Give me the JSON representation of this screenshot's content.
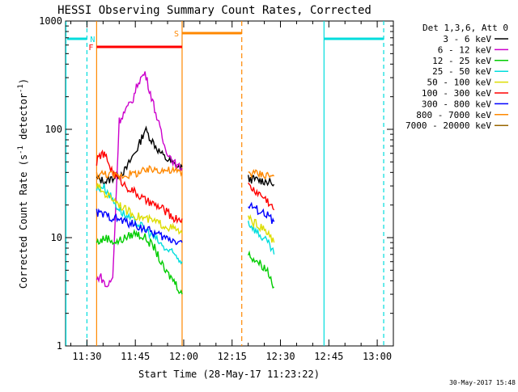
{
  "chart_data": {
    "type": "line",
    "title": "HESSI Observing Summary Count Rates, Corrected",
    "xlabel": "Start Time (28-May-17 11:23:22)",
    "ylabel_main": "Corrected Count Rate (s",
    "ylabel_sup1": "-1",
    "ylabel_mid": " detector",
    "ylabel_sup2": "-1",
    "ylabel_end": ")",
    "yscale": "log",
    "ylim": [
      1,
      1000
    ],
    "xlim_minutes": [
      683.37,
      785.0
    ],
    "x_ticks": [
      {
        "label": "11:30",
        "t": 690
      },
      {
        "label": "11:45",
        "t": 705
      },
      {
        "label": "12:00",
        "t": 720
      },
      {
        "label": "12:15",
        "t": 735
      },
      {
        "label": "12:30",
        "t": 750
      },
      {
        "label": "12:45",
        "t": 765
      },
      {
        "label": "13:00",
        "t": 780
      }
    ],
    "y_ticks": [
      {
        "label": "1",
        "v": 1
      },
      {
        "label": "10",
        "v": 10
      },
      {
        "label": "100",
        "v": 100
      },
      {
        "label": "1000",
        "v": 1000
      }
    ],
    "legend_header": "Det 1,3,6, Att 0",
    "series": [
      {
        "name": "3 - 6 keV",
        "color": "#000000",
        "x": [
          693,
          696,
          699,
          702,
          704,
          706,
          708,
          710,
          712,
          714,
          716,
          718,
          719.5,
          740,
          743,
          746,
          748
        ],
        "y": [
          35,
          33,
          37,
          42,
          55,
          70,
          100,
          80,
          65,
          55,
          50,
          45,
          45,
          35,
          34,
          33,
          31
        ]
      },
      {
        "name": "6 - 12 keV",
        "color": "#cc00cc",
        "x": [
          693,
          694,
          695,
          696,
          697,
          698,
          700,
          702,
          704,
          706,
          708,
          710,
          712,
          714,
          716,
          718,
          719.5
        ],
        "y": [
          4,
          4.5,
          4,
          3.5,
          3.8,
          4.2,
          120,
          150,
          180,
          280,
          330,
          200,
          120,
          70,
          55,
          45,
          44
        ]
      },
      {
        "name": "12 - 25 keV",
        "color": "#00cc00",
        "x": [
          693,
          696,
          699,
          702,
          705,
          708,
          711,
          714,
          717,
          719.5,
          740,
          743,
          746,
          748
        ],
        "y": [
          9,
          10,
          9,
          10,
          11,
          10,
          8,
          5,
          4,
          3,
          7,
          6,
          5,
          3.5
        ]
      },
      {
        "name": "25 - 50 keV",
        "color": "#00dddd",
        "x": [
          693,
          695,
          697,
          699,
          701,
          703,
          705,
          708,
          711,
          714,
          717,
          719.5,
          740,
          743,
          746,
          748
        ],
        "y": [
          28,
          30,
          25,
          20,
          17,
          15,
          14,
          12,
          10,
          8,
          7,
          6,
          14,
          11,
          9,
          7
        ]
      },
      {
        "name": "50 - 100 keV",
        "color": "#dddd00",
        "x": [
          693,
          696,
          699,
          702,
          705,
          708,
          711,
          714,
          717,
          719.5,
          740,
          743,
          746,
          748
        ],
        "y": [
          30,
          25,
          22,
          18,
          16,
          15,
          14,
          13,
          12,
          11,
          15,
          13,
          11,
          9
        ]
      },
      {
        "name": "100 - 300 keV",
        "color": "#ff0000",
        "x": [
          693,
          694.5,
          696,
          698,
          700,
          702,
          705,
          708,
          711,
          714,
          717,
          719.5,
          740,
          743,
          746,
          748
        ],
        "y": [
          50,
          60,
          55,
          40,
          35,
          30,
          26,
          22,
          20,
          18,
          15,
          15,
          30,
          26,
          22,
          18
        ]
      },
      {
        "name": "300 - 800 keV",
        "color": "#0000ff",
        "x": [
          693,
          696,
          699,
          702,
          705,
          708,
          711,
          714,
          717,
          719.5,
          740,
          743,
          746,
          748
        ],
        "y": [
          17,
          16,
          15,
          14,
          13,
          12,
          11,
          10,
          9.5,
          9,
          20,
          18,
          16,
          14
        ]
      },
      {
        "name": "800 - 7000 keV",
        "color": "#ff8800",
        "x": [
          693,
          696,
          699,
          702,
          705,
          708,
          711,
          714,
          717,
          719.5,
          740,
          743,
          746,
          748
        ],
        "y": [
          38,
          39,
          37,
          38,
          39,
          41,
          43,
          42,
          41,
          40,
          40,
          39,
          38,
          37
        ]
      },
      {
        "name": "7000 - 20000 keV",
        "color": "#996600",
        "x": [],
        "y": []
      }
    ],
    "flags": [
      {
        "label": "N",
        "color": "#00dddd",
        "x_start": 687.5,
        "x_end": 690
      },
      {
        "label": "F",
        "color": "#ff0000",
        "x_start": 693,
        "x_end": 719.5
      },
      {
        "label": "S",
        "color": "#ff8800",
        "x_start": 719.5,
        "x_end": 738
      }
    ],
    "timestamp": "30-May-2017 15:48"
  }
}
